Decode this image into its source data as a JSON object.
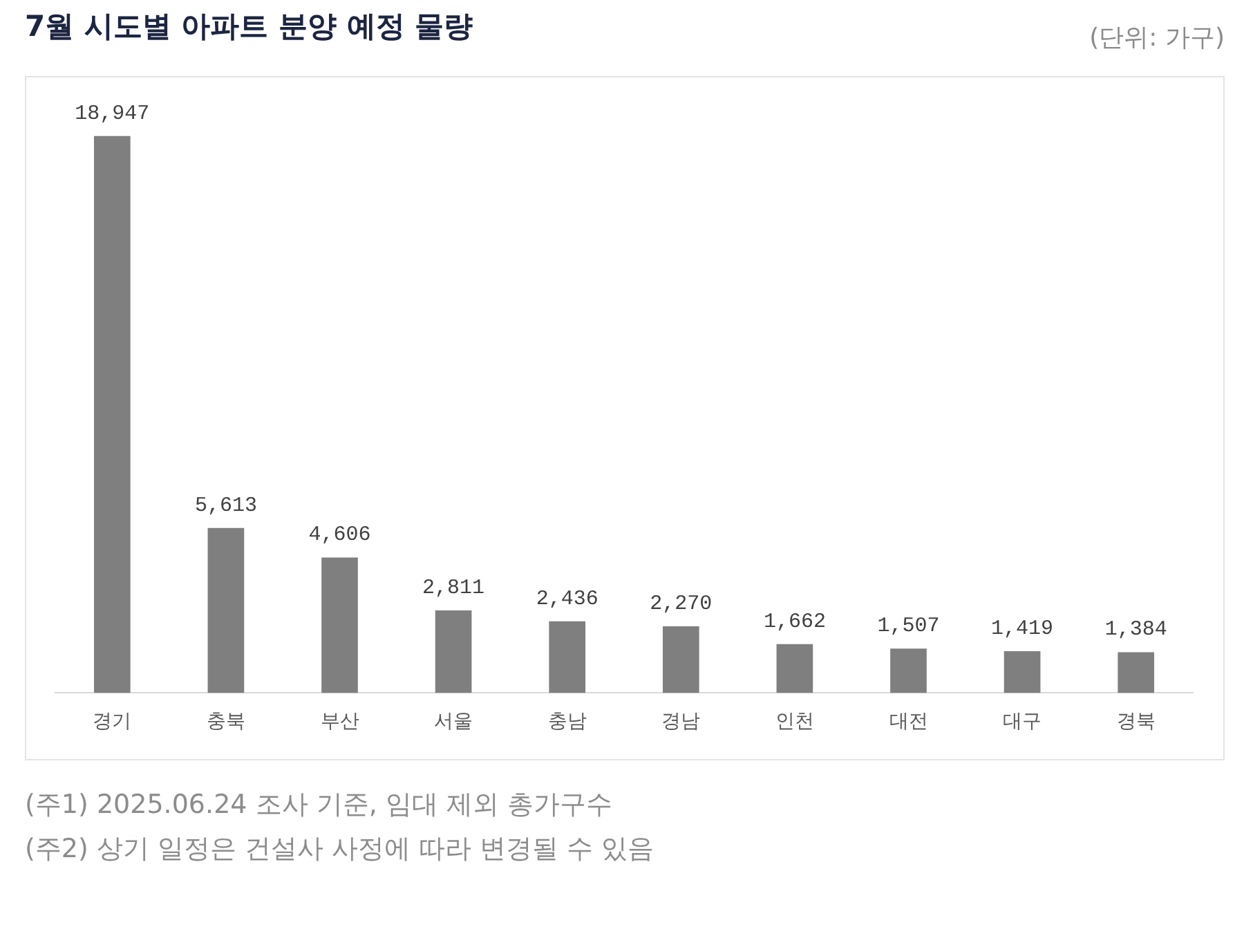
{
  "chart_data": {
    "type": "bar",
    "title": "7월 시도별 아파트 분양 예정 물량",
    "categories": [
      "경기",
      "충북",
      "부산",
      "서울",
      "충남",
      "경남",
      "인천",
      "대전",
      "대구",
      "경북"
    ],
    "values": [
      18947,
      5613,
      4606,
      2811,
      2436,
      2270,
      1662,
      1507,
      1419,
      1384
    ],
    "value_labels": [
      "18,947",
      "5,613",
      "4,606",
      "2,811",
      "2,436",
      "2,270",
      "1,662",
      "1,507",
      "1,419",
      "1,384"
    ],
    "color": "#7f7f7f",
    "tick_labels": "x",
    "annotations": [
      "(단위: 가구)",
      "(주1) 2025.06.24 조사 기준, 임대 제외 총가구수",
      "(주2) 상기 일정은 건설사 사정에 따라 변경될 수 있음"
    ]
  }
}
